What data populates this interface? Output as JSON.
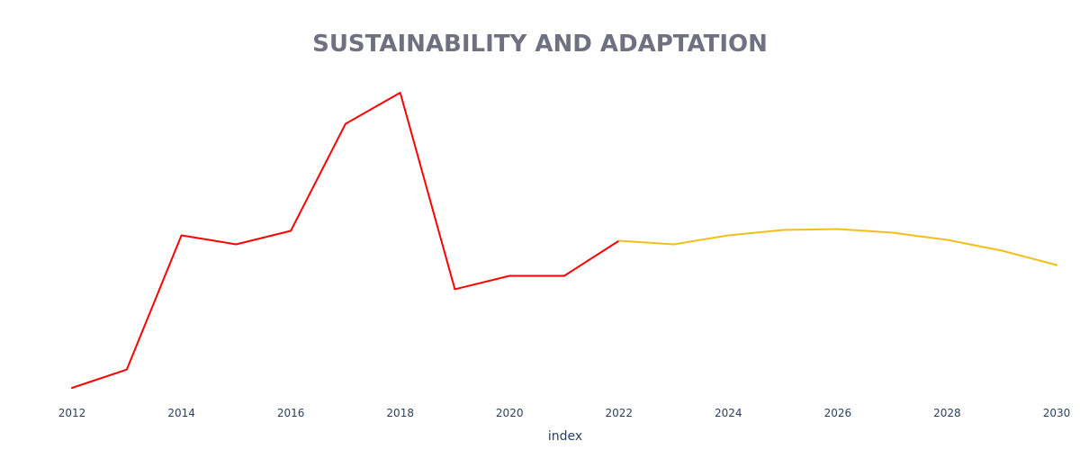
{
  "chart_data": {
    "type": "line",
    "title": "SUSTAINABILITY AND ADAPTATION",
    "xlabel": "index",
    "ylabel": "",
    "xlim": [
      2012,
      2030
    ],
    "ylim": [
      0,
      100
    ],
    "x_ticks": [
      "2012",
      "2014",
      "2016",
      "2018",
      "2020",
      "2022",
      "2024",
      "2026",
      "2028",
      "2030"
    ],
    "grid": false,
    "legend": "none",
    "series": [
      {
        "color": "#ff0000",
        "x": [
          2012,
          2013,
          2014,
          2015,
          2016,
          2017,
          2018,
          2019,
          2020,
          2021,
          2022
        ],
        "y": [
          0,
          6.1,
          50.9,
          47.9,
          52.4,
          88.1,
          98.5,
          32.9,
          37.4,
          37.4,
          49.1
        ]
      },
      {
        "color": "#f2be1e",
        "x": [
          2022,
          2023,
          2024,
          2025,
          2026,
          2027,
          2028,
          2029,
          2030
        ],
        "y": [
          49.1,
          47.9,
          50.9,
          52.7,
          53.0,
          51.8,
          49.4,
          45.8,
          41.0
        ]
      }
    ]
  }
}
